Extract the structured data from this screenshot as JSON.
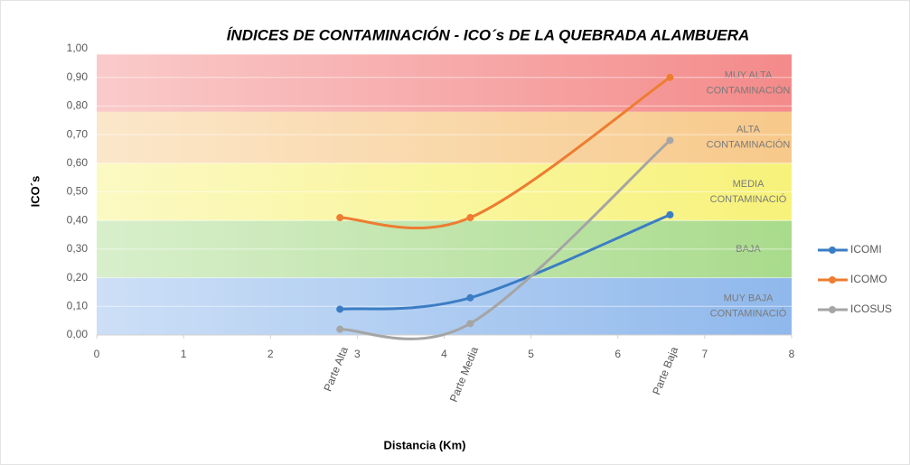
{
  "chart_data": {
    "type": "line",
    "title": "ÍNDICES DE CONTAMINACIÓN - ICO´s DE LA QUEBRADA ALAMBUERA",
    "x_label": "Distancia (Km)",
    "y_label": "ICO´s",
    "x": [
      2.8,
      4.3,
      6.6
    ],
    "point_labels": [
      "Parte Alta",
      "Parte Media",
      "Parte Baja"
    ],
    "series": [
      {
        "name": "ICOMI",
        "color": "#3b7dc4",
        "values": [
          0.09,
          0.13,
          0.42
        ]
      },
      {
        "name": "ICOMO",
        "color": "#ed7d31",
        "values": [
          0.41,
          0.41,
          0.9
        ]
      },
      {
        "name": "ICOSUS",
        "color": "#a5a5a5",
        "values": [
          0.02,
          0.04,
          0.68
        ]
      }
    ],
    "bands": [
      {
        "from": 0,
        "to": 0.2,
        "color": "#8fb8ec",
        "lines": [
          "MUY BAJA",
          "CONTAMINACIÓ"
        ]
      },
      {
        "from": 0.2,
        "to": 0.4,
        "color": "#a9db8c",
        "lines": [
          "BAJA"
        ]
      },
      {
        "from": 0.4,
        "to": 0.6,
        "color": "#f7f27a",
        "lines": [
          "MEDIA",
          "CONTAMINACIÓ"
        ]
      },
      {
        "from": 0.6,
        "to": 0.78,
        "color": "#f7c98a",
        "lines": [
          "ALTA",
          "CONTAMINACIÓN"
        ]
      },
      {
        "from": 0.78,
        "to": 0.98,
        "color": "#f48a8a",
        "lines": [
          "MUY ALTA",
          "CONTAMINACIÓN"
        ]
      }
    ],
    "xlim": [
      0,
      8
    ],
    "xticks": [
      0,
      1,
      2,
      3,
      4,
      5,
      6,
      7,
      8
    ],
    "ylim": [
      0,
      1
    ],
    "yticks": [
      {
        "value": 0,
        "label": "0,00"
      },
      {
        "value": 0.1,
        "label": "0,10"
      },
      {
        "value": 0.2,
        "label": "0,20"
      },
      {
        "value": 0.3,
        "label": "0,30"
      },
      {
        "value": 0.4,
        "label": "0,40"
      },
      {
        "value": 0.5,
        "label": "0,50"
      },
      {
        "value": 0.6,
        "label": "0,60"
      },
      {
        "value": 0.7,
        "label": "0,70"
      },
      {
        "value": 0.8,
        "label": "0,80"
      },
      {
        "value": 0.9,
        "label": "0,90"
      },
      {
        "value": 1,
        "label": "1,00"
      }
    ],
    "grid": true,
    "legend": "right"
  }
}
